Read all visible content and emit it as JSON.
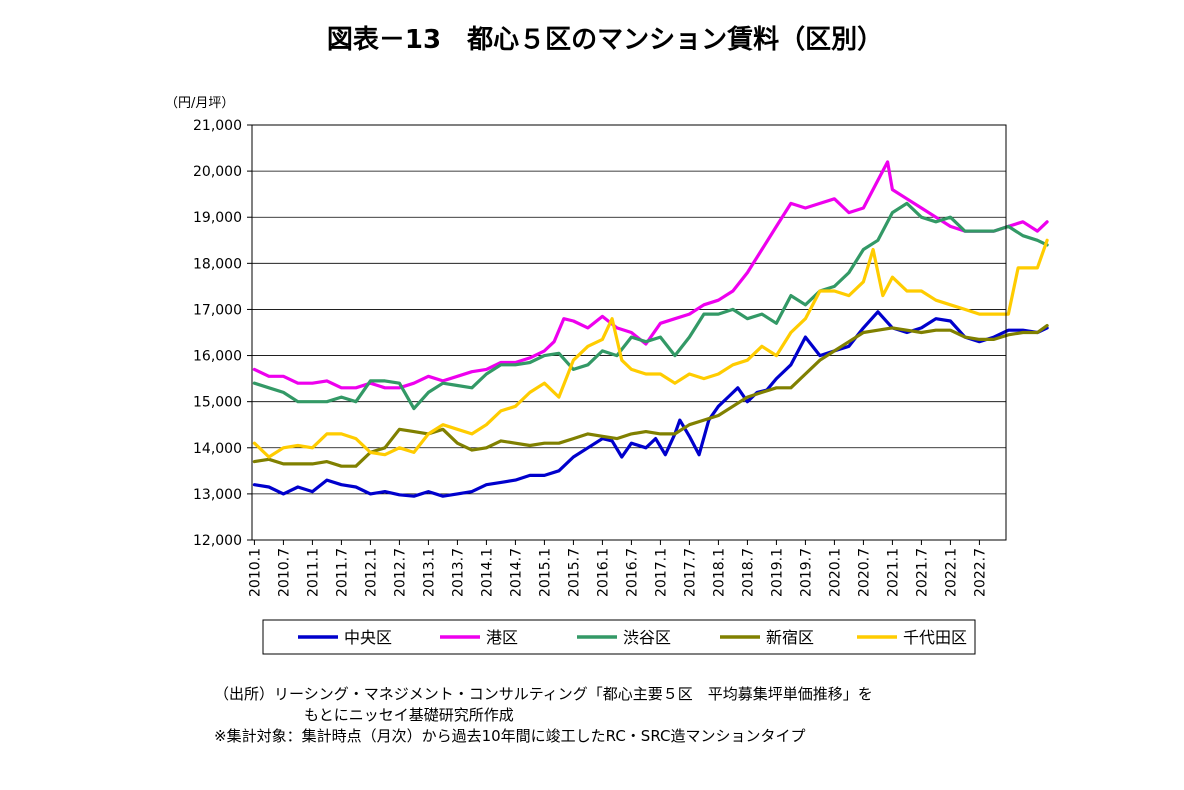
{
  "chart_data": {
    "type": "line",
    "title": "図表－13　都心５区のマンション賃料（区別）",
    "ylabel": "（円/月坪）",
    "xlabel": "",
    "ylim": [
      12000,
      21000
    ],
    "yticks": [
      "12,000",
      "13,000",
      "14,000",
      "15,000",
      "16,000",
      "17,000",
      "18,000",
      "19,000",
      "20,000",
      "21,000"
    ],
    "xticks": [
      "2010.1",
      "2010.7",
      "2011.1",
      "2011.7",
      "2012.1",
      "2012.7",
      "2013.1",
      "2013.7",
      "2014.1",
      "2014.7",
      "2015.1",
      "2015.7",
      "2016.1",
      "2016.7",
      "2017.1",
      "2017.7",
      "2018.1",
      "2018.7",
      "2019.1",
      "2019.7",
      "2020.1",
      "2020.7",
      "2021.1",
      "2021.7",
      "2022.1",
      "2022.7"
    ],
    "x_start": "2010.1",
    "x_end": "2022.9",
    "grid": true,
    "legend_position": "bottom",
    "series": [
      {
        "name": "中央区",
        "color": "#0000CC",
        "points": [
          [
            0,
            13200
          ],
          [
            3,
            13150
          ],
          [
            6,
            13000
          ],
          [
            9,
            13150
          ],
          [
            12,
            13050
          ],
          [
            15,
            13300
          ],
          [
            18,
            13200
          ],
          [
            21,
            13150
          ],
          [
            24,
            13000
          ],
          [
            27,
            13050
          ],
          [
            30,
            12980
          ],
          [
            33,
            12950
          ],
          [
            36,
            13050
          ],
          [
            39,
            12950
          ],
          [
            42,
            13000
          ],
          [
            45,
            13050
          ],
          [
            48,
            13200
          ],
          [
            51,
            13250
          ],
          [
            54,
            13300
          ],
          [
            57,
            13400
          ],
          [
            60,
            13400
          ],
          [
            63,
            13500
          ],
          [
            66,
            13800
          ],
          [
            69,
            14000
          ],
          [
            72,
            14200
          ],
          [
            74,
            14150
          ],
          [
            76,
            13800
          ],
          [
            78,
            14100
          ],
          [
            81,
            14000
          ],
          [
            83,
            14200
          ],
          [
            85,
            13850
          ],
          [
            87,
            14300
          ],
          [
            88,
            14600
          ],
          [
            90,
            14250
          ],
          [
            92,
            13850
          ],
          [
            94,
            14600
          ],
          [
            96,
            14900
          ],
          [
            98,
            15100
          ],
          [
            100,
            15300
          ],
          [
            102,
            15000
          ],
          [
            104,
            15200
          ],
          [
            106,
            15250
          ],
          [
            108,
            15500
          ],
          [
            111,
            15800
          ],
          [
            114,
            16400
          ],
          [
            117,
            16000
          ],
          [
            120,
            16100
          ],
          [
            123,
            16200
          ],
          [
            126,
            16600
          ],
          [
            129,
            16950
          ],
          [
            132,
            16600
          ],
          [
            135,
            16500
          ],
          [
            138,
            16600
          ],
          [
            141,
            16800
          ],
          [
            144,
            16750
          ],
          [
            147,
            16400
          ],
          [
            150,
            16300
          ],
          [
            153,
            16400
          ],
          [
            156,
            16550
          ],
          [
            159,
            16550
          ],
          [
            162,
            16500
          ],
          [
            164,
            16600
          ]
        ]
      },
      {
        "name": "港区",
        "color": "#EE00EE",
        "points": [
          [
            0,
            15700
          ],
          [
            3,
            15550
          ],
          [
            6,
            15550
          ],
          [
            9,
            15400
          ],
          [
            12,
            15400
          ],
          [
            15,
            15450
          ],
          [
            18,
            15300
          ],
          [
            21,
            15300
          ],
          [
            24,
            15400
          ],
          [
            27,
            15300
          ],
          [
            30,
            15300
          ],
          [
            33,
            15400
          ],
          [
            36,
            15550
          ],
          [
            39,
            15450
          ],
          [
            42,
            15550
          ],
          [
            45,
            15650
          ],
          [
            48,
            15700
          ],
          [
            51,
            15850
          ],
          [
            54,
            15850
          ],
          [
            57,
            15950
          ],
          [
            60,
            16100
          ],
          [
            62,
            16300
          ],
          [
            64,
            16800
          ],
          [
            66,
            16750
          ],
          [
            69,
            16600
          ],
          [
            72,
            16850
          ],
          [
            75,
            16600
          ],
          [
            78,
            16500
          ],
          [
            81,
            16250
          ],
          [
            84,
            16700
          ],
          [
            87,
            16800
          ],
          [
            90,
            16900
          ],
          [
            93,
            17100
          ],
          [
            96,
            17200
          ],
          [
            99,
            17400
          ],
          [
            102,
            17800
          ],
          [
            105,
            18300
          ],
          [
            108,
            18800
          ],
          [
            111,
            19300
          ],
          [
            114,
            19200
          ],
          [
            117,
            19300
          ],
          [
            120,
            19400
          ],
          [
            123,
            19100
          ],
          [
            126,
            19200
          ],
          [
            129,
            19800
          ],
          [
            131,
            20200
          ],
          [
            132,
            19600
          ],
          [
            135,
            19400
          ],
          [
            138,
            19200
          ],
          [
            141,
            19000
          ],
          [
            144,
            18800
          ],
          [
            147,
            18700
          ],
          [
            150,
            18700
          ],
          [
            153,
            18700
          ],
          [
            156,
            18800
          ],
          [
            159,
            18900
          ],
          [
            162,
            18700
          ],
          [
            164,
            18900
          ]
        ]
      },
      {
        "name": "渋谷区",
        "color": "#339966",
        "points": [
          [
            0,
            15400
          ],
          [
            3,
            15300
          ],
          [
            6,
            15200
          ],
          [
            9,
            15000
          ],
          [
            12,
            15000
          ],
          [
            15,
            15000
          ],
          [
            18,
            15100
          ],
          [
            21,
            15000
          ],
          [
            24,
            15450
          ],
          [
            27,
            15450
          ],
          [
            30,
            15400
          ],
          [
            33,
            14850
          ],
          [
            36,
            15200
          ],
          [
            39,
            15400
          ],
          [
            42,
            15350
          ],
          [
            45,
            15300
          ],
          [
            48,
            15600
          ],
          [
            51,
            15800
          ],
          [
            54,
            15800
          ],
          [
            57,
            15850
          ],
          [
            60,
            16000
          ],
          [
            63,
            16050
          ],
          [
            66,
            15700
          ],
          [
            69,
            15800
          ],
          [
            72,
            16100
          ],
          [
            75,
            16000
          ],
          [
            78,
            16400
          ],
          [
            81,
            16300
          ],
          [
            84,
            16400
          ],
          [
            87,
            16000
          ],
          [
            90,
            16400
          ],
          [
            93,
            16900
          ],
          [
            96,
            16900
          ],
          [
            99,
            17000
          ],
          [
            102,
            16800
          ],
          [
            105,
            16900
          ],
          [
            108,
            16700
          ],
          [
            111,
            17300
          ],
          [
            114,
            17100
          ],
          [
            117,
            17400
          ],
          [
            120,
            17500
          ],
          [
            123,
            17800
          ],
          [
            126,
            18300
          ],
          [
            129,
            18500
          ],
          [
            132,
            19100
          ],
          [
            135,
            19300
          ],
          [
            138,
            19000
          ],
          [
            141,
            18900
          ],
          [
            144,
            19000
          ],
          [
            147,
            18700
          ],
          [
            150,
            18700
          ],
          [
            153,
            18700
          ],
          [
            156,
            18800
          ],
          [
            159,
            18600
          ],
          [
            162,
            18500
          ],
          [
            164,
            18400
          ]
        ]
      },
      {
        "name": "新宿区",
        "color": "#808000",
        "points": [
          [
            0,
            13700
          ],
          [
            3,
            13750
          ],
          [
            6,
            13650
          ],
          [
            9,
            13650
          ],
          [
            12,
            13650
          ],
          [
            15,
            13700
          ],
          [
            18,
            13600
          ],
          [
            21,
            13600
          ],
          [
            24,
            13900
          ],
          [
            27,
            14000
          ],
          [
            30,
            14400
          ],
          [
            33,
            14350
          ],
          [
            36,
            14300
          ],
          [
            39,
            14400
          ],
          [
            42,
            14100
          ],
          [
            45,
            13950
          ],
          [
            48,
            14000
          ],
          [
            51,
            14150
          ],
          [
            54,
            14100
          ],
          [
            57,
            14050
          ],
          [
            60,
            14100
          ],
          [
            63,
            14100
          ],
          [
            66,
            14200
          ],
          [
            69,
            14300
          ],
          [
            72,
            14250
          ],
          [
            75,
            14200
          ],
          [
            78,
            14300
          ],
          [
            81,
            14350
          ],
          [
            84,
            14300
          ],
          [
            87,
            14300
          ],
          [
            90,
            14500
          ],
          [
            93,
            14600
          ],
          [
            96,
            14700
          ],
          [
            99,
            14900
          ],
          [
            102,
            15100
          ],
          [
            105,
            15200
          ],
          [
            108,
            15300
          ],
          [
            111,
            15300
          ],
          [
            114,
            15600
          ],
          [
            117,
            15900
          ],
          [
            120,
            16100
          ],
          [
            123,
            16300
          ],
          [
            126,
            16500
          ],
          [
            129,
            16550
          ],
          [
            132,
            16600
          ],
          [
            135,
            16550
          ],
          [
            138,
            16500
          ],
          [
            141,
            16550
          ],
          [
            144,
            16550
          ],
          [
            147,
            16400
          ],
          [
            150,
            16350
          ],
          [
            153,
            16350
          ],
          [
            156,
            16450
          ],
          [
            159,
            16500
          ],
          [
            162,
            16500
          ],
          [
            164,
            16650
          ]
        ]
      },
      {
        "name": "千代田区",
        "color": "#FFCC00",
        "points": [
          [
            0,
            14100
          ],
          [
            3,
            13800
          ],
          [
            6,
            14000
          ],
          [
            9,
            14050
          ],
          [
            12,
            14000
          ],
          [
            15,
            14300
          ],
          [
            18,
            14300
          ],
          [
            21,
            14200
          ],
          [
            24,
            13900
          ],
          [
            27,
            13850
          ],
          [
            30,
            14000
          ],
          [
            33,
            13900
          ],
          [
            36,
            14300
          ],
          [
            39,
            14500
          ],
          [
            42,
            14400
          ],
          [
            45,
            14300
          ],
          [
            48,
            14500
          ],
          [
            51,
            14800
          ],
          [
            54,
            14900
          ],
          [
            57,
            15200
          ],
          [
            60,
            15400
          ],
          [
            63,
            15100
          ],
          [
            66,
            15900
          ],
          [
            69,
            16200
          ],
          [
            72,
            16350
          ],
          [
            74,
            16800
          ],
          [
            76,
            15900
          ],
          [
            78,
            15700
          ],
          [
            81,
            15600
          ],
          [
            84,
            15600
          ],
          [
            87,
            15400
          ],
          [
            90,
            15600
          ],
          [
            93,
            15500
          ],
          [
            96,
            15600
          ],
          [
            99,
            15800
          ],
          [
            102,
            15900
          ],
          [
            105,
            16200
          ],
          [
            108,
            16000
          ],
          [
            111,
            16500
          ],
          [
            114,
            16800
          ],
          [
            117,
            17400
          ],
          [
            120,
            17400
          ],
          [
            123,
            17300
          ],
          [
            126,
            17600
          ],
          [
            128,
            18300
          ],
          [
            130,
            17300
          ],
          [
            132,
            17700
          ],
          [
            135,
            17400
          ],
          [
            138,
            17400
          ],
          [
            141,
            17200
          ],
          [
            144,
            17100
          ],
          [
            147,
            17000
          ],
          [
            150,
            16900
          ],
          [
            153,
            16900
          ],
          [
            156,
            16900
          ],
          [
            158,
            17900
          ],
          [
            160,
            17900
          ],
          [
            162,
            17900
          ],
          [
            164,
            18500
          ]
        ]
      }
    ]
  },
  "notes": {
    "line1": "（出所）リーシング・マネジメント・コンサルティング「都心主要５区　平均募集坪単価推移」を",
    "line2": "もとにニッセイ基礎研究所作成",
    "line3": "※集計対象：集計時点（月次）から過去10年間に竣工したRC・SRC造マンションタイプ"
  }
}
